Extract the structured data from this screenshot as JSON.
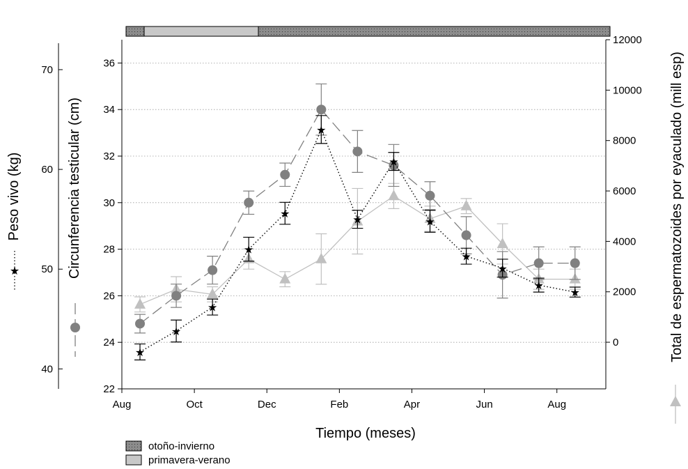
{
  "chart_data": {
    "type": "line",
    "xlabel": "Tiempo (meses)",
    "x_ticks": [
      "Aug",
      "Oct",
      "Dec",
      "Feb",
      "Apr",
      "Jun",
      "Aug"
    ],
    "x_months": [
      1,
      3,
      5,
      7,
      9,
      11,
      13,
      15,
      17,
      19,
      21,
      23,
      25
    ],
    "y_left_circ": {
      "label": "Circunferencia testicular (cm)",
      "ylim": [
        22,
        37
      ],
      "ticks": [
        "22",
        "24",
        "26",
        "28",
        "30",
        "32",
        "34",
        "36"
      ]
    },
    "y_left_peso": {
      "label": "Peso vivo (kg)",
      "ylim": [
        38,
        73
      ],
      "ticks": [
        "40",
        "50",
        "60",
        "70"
      ]
    },
    "y_right_esp": {
      "label": "Total de espermatozoides por eyaculado (mill esp)",
      "ylim": [
        -1850,
        12000
      ],
      "ticks": [
        "0",
        "2000",
        "4000",
        "6000",
        "8000",
        "10000",
        "12000"
      ]
    },
    "series": [
      {
        "key": "peso",
        "axis": "peso",
        "values": [
          41.7,
          43.8,
          46.2,
          52.0,
          55.6,
          64.0,
          55.0,
          60.8,
          54.8,
          51.3,
          50.1,
          48.4,
          47.7
        ],
        "errors": [
          0.8,
          1.1,
          0.8,
          1.2,
          1.1,
          1.4,
          0.9,
          0.9,
          1.1,
          0.8,
          0.9,
          0.7,
          0.5
        ],
        "color": "#000000"
      },
      {
        "key": "circ",
        "axis": "circ",
        "values": [
          24.8,
          26.0,
          27.1,
          30.0,
          31.2,
          34.0,
          32.2,
          31.6,
          30.3,
          28.6,
          26.9,
          27.4,
          27.4
        ],
        "errors": [
          0.4,
          0.5,
          0.6,
          0.5,
          0.5,
          1.1,
          0.9,
          0.9,
          0.6,
          0.8,
          1.0,
          0.7,
          0.7
        ],
        "color": "#808080"
      },
      {
        "key": "esp",
        "axis": "esp",
        "values": [
          1500,
          2100,
          1900,
          3300,
          2500,
          3300,
          4800,
          5800,
          4900,
          5400,
          3900,
          2500,
          2500
        ],
        "errors": [
          300,
          500,
          300,
          400,
          300,
          1000,
          1300,
          500,
          500,
          300,
          800,
          400,
          400
        ],
        "color": "#c0c0c0"
      }
    ],
    "season_bar": [
      {
        "name": "otoño-invierno",
        "from_month": 0.0,
        "to_month": 1.0
      },
      {
        "name": "primavera-verano",
        "from_month": 1.0,
        "to_month": 7.3
      },
      {
        "name": "otoño-invierno",
        "from_month": 7.3,
        "to_month": 26.7
      }
    ],
    "legend": [
      "otoño-invierno",
      "primavera-verano"
    ],
    "grid": "horizontal dotted",
    "colors": {
      "dark_gray": "#808080",
      "light_gray": "#c0c0c0",
      "season_dark": "#8c8c8c",
      "season_light": "#c8c8c8"
    }
  }
}
